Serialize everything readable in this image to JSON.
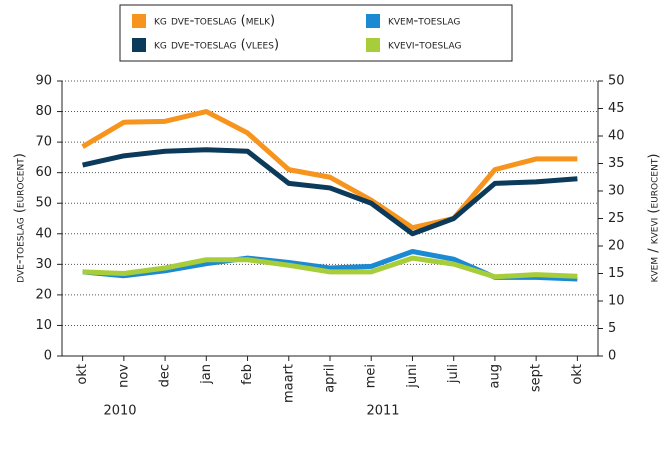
{
  "chart_data": {
    "type": "line",
    "categories": [
      "okt",
      "nov",
      "dec",
      "jan",
      "feb",
      "maart",
      "april",
      "mei",
      "juni",
      "juli",
      "aug",
      "sept",
      "okt"
    ],
    "annotations": [
      "2010",
      "2011"
    ],
    "ylabel": "dve-toeslag (eurocent)",
    "y2label": "kvem / kvevi (eurocent)",
    "ylim": [
      0,
      90
    ],
    "yticks": [
      0,
      10,
      20,
      30,
      40,
      50,
      60,
      70,
      80,
      90
    ],
    "y2lim": [
      0,
      50
    ],
    "y2ticks": [
      0,
      5,
      10,
      15,
      20,
      25,
      30,
      35,
      40,
      45,
      50
    ],
    "grid": true,
    "legend": "top",
    "series": [
      {
        "name": "kg dve-toeslag (melk)",
        "color": "#f7941d",
        "values": [
          68.5,
          76.5,
          76.8,
          80,
          73,
          61,
          58.5,
          51,
          42,
          45,
          61,
          64.5,
          64.5
        ]
      },
      {
        "name": "kvem-toeslag",
        "color": "#1b8ad3",
        "axis": "y2",
        "values": [
          15.3,
          14.6,
          15.5,
          16.8,
          17.8,
          17,
          16,
          16.3,
          19,
          17.6,
          14.3,
          14.3,
          14
        ]
      },
      {
        "name": "kg dve-toeslag (vlees)",
        "color": "#0b3a5a",
        "values": [
          62.5,
          65.5,
          67,
          67.5,
          67,
          56.5,
          55,
          50,
          40,
          45,
          56.5,
          57,
          58
        ]
      },
      {
        "name": "kvevi-toeslag",
        "color": "#a8cd3a",
        "axis": "y2",
        "values": [
          15.3,
          15,
          16,
          17.5,
          17.5,
          16.5,
          15.3,
          15.3,
          17.8,
          16.7,
          14.4,
          14.8,
          14.5
        ]
      }
    ]
  }
}
